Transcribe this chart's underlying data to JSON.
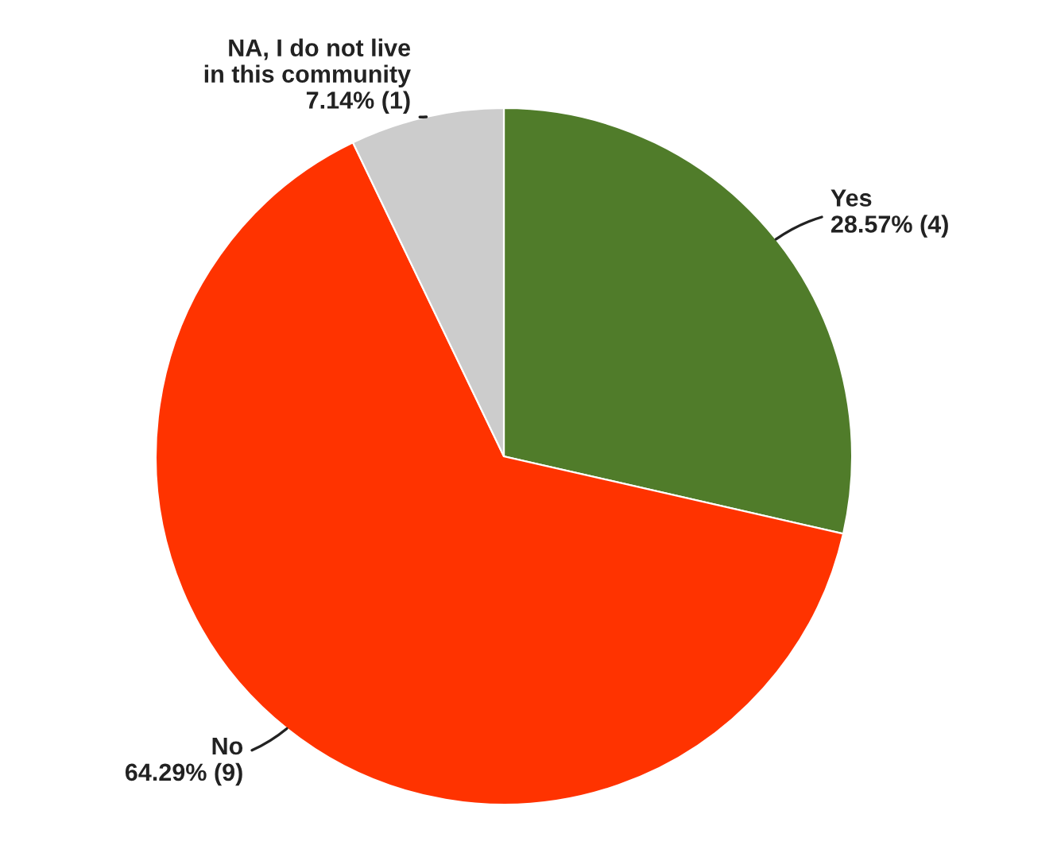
{
  "chart_data": {
    "type": "pie",
    "categories": [
      "Yes",
      "No",
      "NA, I do not live\nin this community"
    ],
    "values": [
      28.57,
      64.29,
      7.14
    ],
    "value_labels": [
      "28.57% (4)",
      "64.29% (9)",
      "7.14% (1)"
    ],
    "colors": [
      "#507c2a",
      "#ff3300",
      "#cccccc"
    ],
    "legend": false
  }
}
